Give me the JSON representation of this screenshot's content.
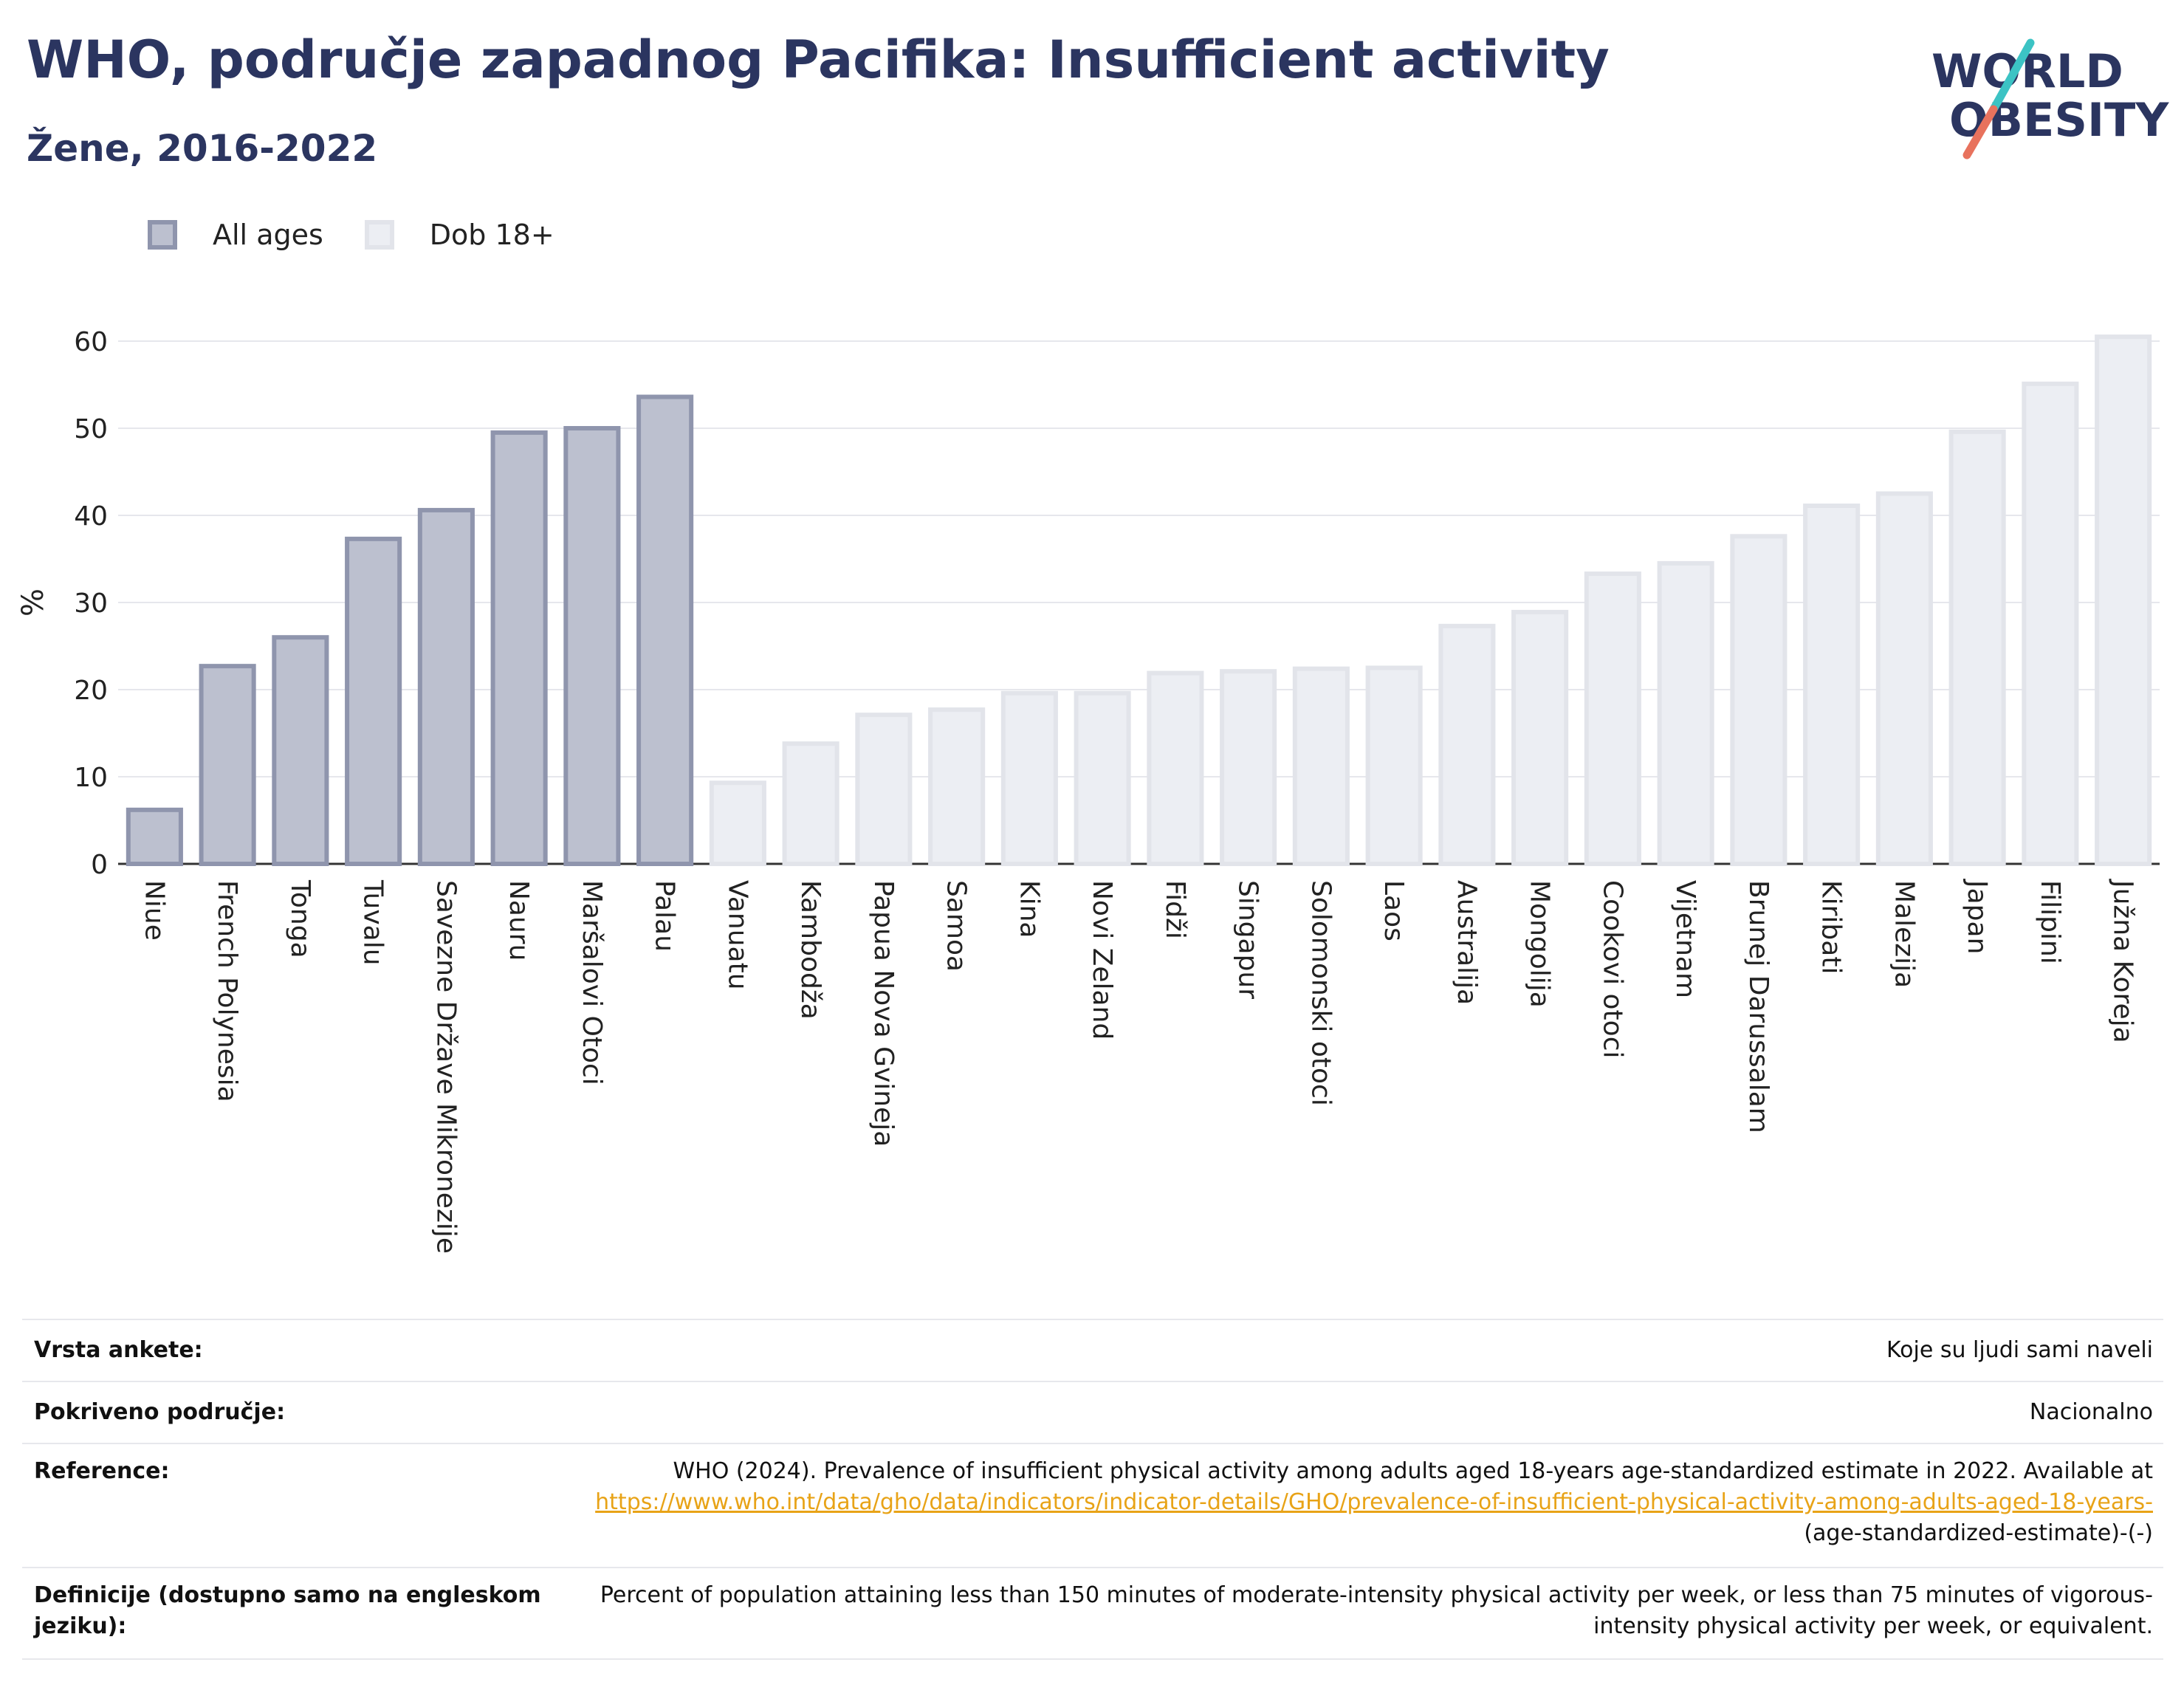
{
  "header": {
    "title": "WHO, područje zapadnog Pacifika: Insufficient activity",
    "subtitle": "Žene, 2016-2022"
  },
  "logo": {
    "line1": "WORLD",
    "line2": "OBESITY"
  },
  "colors": {
    "title": "#2b3560",
    "all_ages_fill": "#bcc0cf",
    "all_ages_stroke": "#8f95ad",
    "age18_fill": "#eceef3",
    "age18_stroke": "#e2e4ea",
    "link": "#e8a317",
    "logo_teal": "#3cc3c4",
    "logo_coral": "#e8725d"
  },
  "legend": [
    {
      "label": "All ages",
      "series": "all"
    },
    {
      "label": "Dob 18+",
      "series": "18"
    }
  ],
  "chart_data": {
    "type": "bar",
    "ylabel": "%",
    "ylim": [
      0,
      60
    ],
    "yticks": [
      0,
      10,
      20,
      30,
      40,
      50,
      60
    ],
    "grid": true,
    "legend_position": "top-left",
    "categories": [
      "Niue",
      "French Polynesia",
      "Tonga",
      "Tuvalu",
      "Savezne Države Mikronezije",
      "Nauru",
      "Maršalovi Otoci",
      "Palau",
      "Vanuatu",
      "Kambodža",
      "Papua Nova Gvineja",
      "Samoa",
      "Kina",
      "Novi Zeland",
      "Fidži",
      "Singapur",
      "Solomonski otoci",
      "Laos",
      "Australija",
      "Mongolija",
      "Cookovi otoci",
      "Vijetnam",
      "Brunej Darussalam",
      "Kiribati",
      "Malezija",
      "Japan",
      "Filipini",
      "Južna Koreja"
    ],
    "values": [
      6.2,
      22.7,
      26.0,
      37.3,
      40.6,
      49.5,
      50.0,
      53.6,
      9.3,
      13.8,
      17.1,
      17.7,
      19.6,
      19.6,
      21.9,
      22.1,
      22.4,
      22.5,
      27.3,
      28.9,
      33.3,
      34.5,
      37.6,
      41.1,
      42.5,
      49.6,
      55.1,
      60.5
    ],
    "series_of_bar": [
      "all",
      "all",
      "all",
      "all",
      "all",
      "all",
      "all",
      "all",
      "18",
      "18",
      "18",
      "18",
      "18",
      "18",
      "18",
      "18",
      "18",
      "18",
      "18",
      "18",
      "18",
      "18",
      "18",
      "18",
      "18",
      "18",
      "18",
      "18"
    ],
    "series": [
      {
        "name": "All ages",
        "key": "all"
      },
      {
        "name": "Dob 18+",
        "key": "18"
      }
    ]
  },
  "info": {
    "survey_label": "Vrsta ankete:",
    "survey_value": "Koje su ljudi sami naveli",
    "coverage_label": "Pokriveno područje:",
    "coverage_value": "Nacionalno",
    "reference_label": "Reference:",
    "reference_text": "WHO (2024). Prevalence of insufficient physical activity among adults aged 18-years age-standardized estimate in 2022. Available at",
    "reference_link": "https://www.who.int/data/gho/data/indicators/indicator-details/GHO/prevalence-of-insufficient-physical-activity-among-adults-aged-18-years-",
    "reference_tail": "(age-standardized-estimate)-(-)",
    "definition_label": "Definicije (dostupno samo na engleskom jeziku):",
    "definition_value": "Percent of population attaining less than 150 minutes of moderate-intensity physical activity per week, or less than 75 minutes of vigorous-intensity physical activity per week, or equivalent."
  }
}
